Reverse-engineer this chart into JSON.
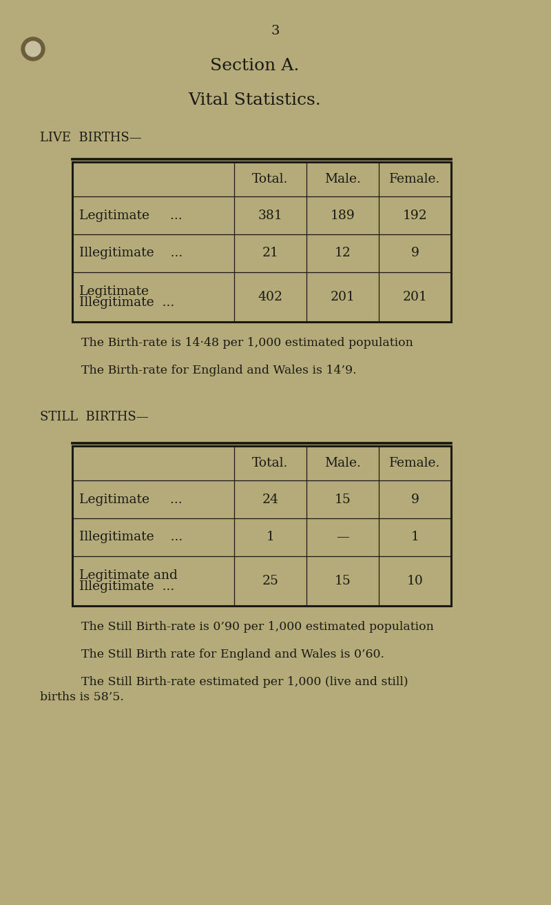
{
  "page_number": "3",
  "section_title": "Section A.",
  "subtitle": "Vital Statistics.",
  "background_color": "#b5aa7a",
  "text_color": "#1a1a14",
  "live_births_label": "LIVE  BIRTHS—",
  "live_table_headers": [
    "",
    "Total.",
    "Male.",
    "Female."
  ],
  "live_table_rows": [
    [
      "Legitimate     ...",
      "381",
      "189",
      "192"
    ],
    [
      "Illegitimate    ...",
      "21",
      "12",
      "9"
    ],
    [
      "Legitimate\nIllegitimate  ...",
      "402",
      "201",
      "201"
    ]
  ],
  "live_note1": "The Birth-rate is 14·48 per 1,000 estimated population",
  "live_note2": "The Birth-rate for England and Wales is 14’9.",
  "still_births_label": "STILL  BIRTHS—",
  "still_table_headers": [
    "",
    "Total.",
    "Male.",
    "Female."
  ],
  "still_table_rows": [
    [
      "Legitimate     ...",
      "24",
      "15",
      "9"
    ],
    [
      "Illegitimate    ...",
      "1",
      "—",
      "1"
    ],
    [
      "Legitimate and\nIllegitimate  ...",
      "25",
      "15",
      "10"
    ]
  ],
  "still_note1": "The Still Birth-rate is 0’90 per 1,000 estimated population",
  "still_note2": "The Still Birth rate for England and Wales is 0’60.",
  "still_note3a": "        The Still Birth-rate estimated per 1,000 (live and still)",
  "still_note3b": "births is 58’5."
}
